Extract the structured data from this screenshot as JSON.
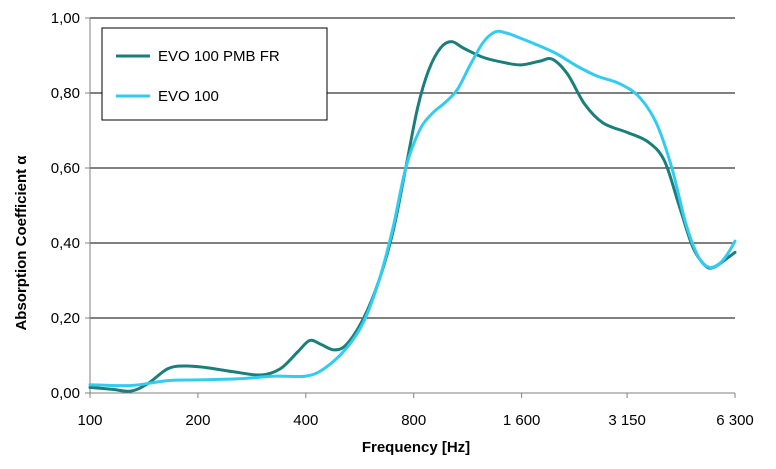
{
  "chart_data": {
    "type": "line",
    "title": "",
    "xlabel": "Frequency [Hz]",
    "ylabel": "Absorption Coefficient α",
    "x_scale": "log",
    "x_tick_labels": [
      "100",
      "200",
      "400",
      "800",
      "1 600",
      "3 150",
      "6 300"
    ],
    "x_tick_values": [
      100,
      200,
      400,
      800,
      1600,
      3150,
      6300
    ],
    "y_tick_labels": [
      "0,00",
      "0,20",
      "0,40",
      "0,60",
      "0,80",
      "1,00"
    ],
    "y_tick_values": [
      0,
      0.2,
      0.4,
      0.6,
      0.8,
      1.0
    ],
    "ylim": [
      0,
      1.0
    ],
    "xlim": [
      100,
      6300
    ],
    "grid": "horizontal",
    "legend_position": "top-left",
    "series": [
      {
        "name": "EVO 100 PMB FR",
        "color": "#1a7f7a",
        "points": [
          [
            100,
            0.015
          ],
          [
            115,
            0.01
          ],
          [
            130,
            0.005
          ],
          [
            145,
            0.025
          ],
          [
            165,
            0.065
          ],
          [
            185,
            0.072
          ],
          [
            210,
            0.068
          ],
          [
            250,
            0.057
          ],
          [
            300,
            0.048
          ],
          [
            340,
            0.065
          ],
          [
            380,
            0.11
          ],
          [
            410,
            0.14
          ],
          [
            440,
            0.13
          ],
          [
            480,
            0.115
          ],
          [
            520,
            0.13
          ],
          [
            580,
            0.2
          ],
          [
            640,
            0.3
          ],
          [
            700,
            0.43
          ],
          [
            760,
            0.6
          ],
          [
            820,
            0.76
          ],
          [
            880,
            0.86
          ],
          [
            950,
            0.92
          ],
          [
            1020,
            0.937
          ],
          [
            1100,
            0.92
          ],
          [
            1250,
            0.895
          ],
          [
            1450,
            0.88
          ],
          [
            1600,
            0.875
          ],
          [
            1800,
            0.885
          ],
          [
            1950,
            0.89
          ],
          [
            2150,
            0.85
          ],
          [
            2400,
            0.77
          ],
          [
            2700,
            0.72
          ],
          [
            3150,
            0.695
          ],
          [
            3600,
            0.67
          ],
          [
            4000,
            0.62
          ],
          [
            4400,
            0.5
          ],
          [
            4800,
            0.39
          ],
          [
            5200,
            0.34
          ],
          [
            5500,
            0.335
          ],
          [
            6000,
            0.36
          ],
          [
            6300,
            0.375
          ]
        ]
      },
      {
        "name": "EVO 100",
        "color": "#33ccf0",
        "points": [
          [
            100,
            0.022
          ],
          [
            130,
            0.02
          ],
          [
            165,
            0.033
          ],
          [
            200,
            0.035
          ],
          [
            260,
            0.038
          ],
          [
            330,
            0.045
          ],
          [
            400,
            0.045
          ],
          [
            450,
            0.065
          ],
          [
            520,
            0.12
          ],
          [
            580,
            0.19
          ],
          [
            640,
            0.3
          ],
          [
            700,
            0.44
          ],
          [
            760,
            0.6
          ],
          [
            830,
            0.7
          ],
          [
            900,
            0.745
          ],
          [
            980,
            0.775
          ],
          [
            1060,
            0.81
          ],
          [
            1150,
            0.875
          ],
          [
            1250,
            0.935
          ],
          [
            1350,
            0.963
          ],
          [
            1450,
            0.96
          ],
          [
            1600,
            0.945
          ],
          [
            1800,
            0.925
          ],
          [
            2000,
            0.905
          ],
          [
            2300,
            0.87
          ],
          [
            2600,
            0.845
          ],
          [
            3000,
            0.825
          ],
          [
            3400,
            0.79
          ],
          [
            3800,
            0.72
          ],
          [
            4200,
            0.6
          ],
          [
            4600,
            0.45
          ],
          [
            5000,
            0.36
          ],
          [
            5350,
            0.335
          ],
          [
            5700,
            0.345
          ],
          [
            6000,
            0.37
          ],
          [
            6300,
            0.405
          ]
        ]
      }
    ]
  }
}
